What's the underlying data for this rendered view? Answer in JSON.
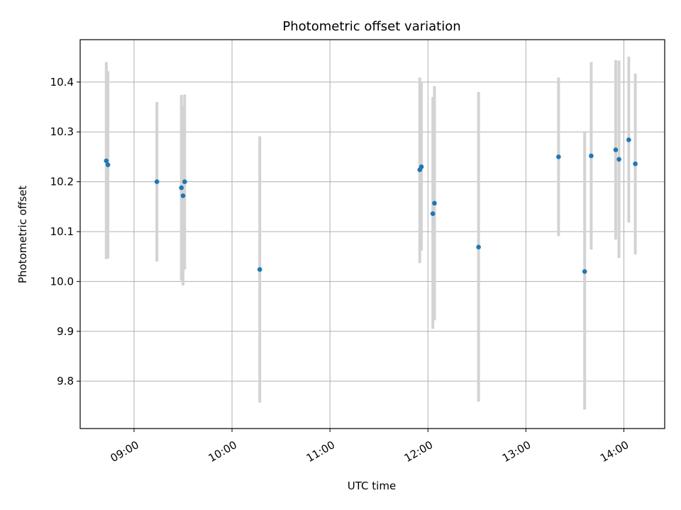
{
  "chart_data": {
    "type": "scatter",
    "title": "Photometric offset variation",
    "xlabel": "UTC time",
    "ylabel": "Photometric offset",
    "grid": true,
    "x_tick_labels": [
      "09:00",
      "10:00",
      "11:00",
      "12:00",
      "13:00",
      "14:00"
    ],
    "y_tick_labels": [
      "9.8",
      "9.9",
      "10.0",
      "10.1",
      "10.2",
      "10.3",
      "10.4"
    ],
    "xlim": [
      "08:27",
      "14:25"
    ],
    "ylim": [
      9.705,
      10.485
    ],
    "colors": {
      "points": "#1f77b4",
      "error_bars": "#d3d3d3",
      "grid": "#b0b0b0"
    },
    "points": [
      {
        "x": "08:43",
        "y": 10.242,
        "low": 10.045,
        "high": 10.44
      },
      {
        "x": "08:44",
        "y": 10.234,
        "low": 10.046,
        "high": 10.422
      },
      {
        "x": "09:14",
        "y": 10.2,
        "low": 10.04,
        "high": 10.36
      },
      {
        "x": "09:29",
        "y": 10.188,
        "low": 10.002,
        "high": 10.374
      },
      {
        "x": "09:30",
        "y": 10.172,
        "low": 9.992,
        "high": 10.352
      },
      {
        "x": "09:31",
        "y": 10.2,
        "low": 10.024,
        "high": 10.375
      },
      {
        "x": "10:17",
        "y": 10.024,
        "low": 9.757,
        "high": 10.291
      },
      {
        "x": "11:55",
        "y": 10.224,
        "low": 10.037,
        "high": 10.409
      },
      {
        "x": "11:56",
        "y": 10.23,
        "low": 10.062,
        "high": 10.4
      },
      {
        "x": "12:03",
        "y": 10.136,
        "low": 9.905,
        "high": 10.37
      },
      {
        "x": "12:04",
        "y": 10.157,
        "low": 9.922,
        "high": 10.392
      },
      {
        "x": "12:31",
        "y": 10.069,
        "low": 9.759,
        "high": 10.38
      },
      {
        "x": "13:20",
        "y": 10.25,
        "low": 10.091,
        "high": 10.409
      },
      {
        "x": "13:36",
        "y": 10.02,
        "low": 9.743,
        "high": 10.299
      },
      {
        "x": "13:40",
        "y": 10.252,
        "low": 10.064,
        "high": 10.44
      },
      {
        "x": "13:55",
        "y": 10.264,
        "low": 10.084,
        "high": 10.444
      },
      {
        "x": "13:57",
        "y": 10.245,
        "low": 10.047,
        "high": 10.443
      },
      {
        "x": "14:03",
        "y": 10.284,
        "low": 10.118,
        "high": 10.451
      },
      {
        "x": "14:07",
        "y": 10.236,
        "low": 10.054,
        "high": 10.417
      }
    ]
  }
}
